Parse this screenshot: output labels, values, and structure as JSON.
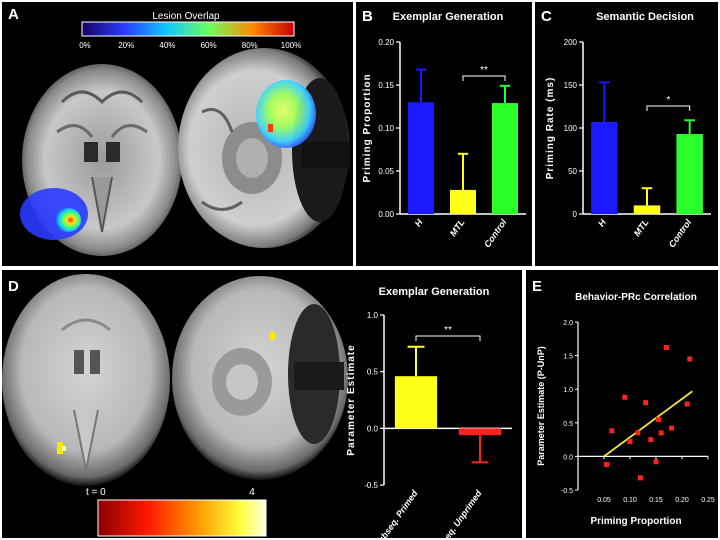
{
  "panels": {
    "a": {
      "label": "A",
      "colorbar_title": "Lesion Overlap",
      "colorbar_ticks": [
        "0%",
        "20%",
        "40%",
        "60%",
        "80%",
        "100%"
      ]
    },
    "b": {
      "label": "B"
    },
    "c": {
      "label": "C"
    },
    "d": {
      "label": "D",
      "colorbar_min": "t = 0",
      "colorbar_max": "4"
    },
    "e": {
      "label": "E"
    }
  },
  "chart_data": [
    {
      "id": "exemplar-generation",
      "type": "bar",
      "title": "Exemplar Generation",
      "ylabel": "Priming Proportion",
      "categories": [
        "H",
        "MTL",
        "Control"
      ],
      "values": [
        0.13,
        0.028,
        0.129
      ],
      "errors": [
        0.038,
        0.042,
        0.02
      ],
      "colors": [
        "#1a1aff",
        "#ffff1a",
        "#2bff2b"
      ],
      "ylim": [
        0,
        0.2
      ],
      "yticks": [
        "0.00",
        "0.05",
        "0.10",
        "0.15",
        "0.20"
      ],
      "significance": [
        {
          "from": 1,
          "to": 2,
          "label": "**"
        }
      ]
    },
    {
      "id": "semantic-decision",
      "type": "bar",
      "title": "Semantic Decision",
      "ylabel": "Priming Rate (ms)",
      "categories": [
        "H",
        "MTL",
        "Control"
      ],
      "values": [
        107,
        10,
        93
      ],
      "errors": [
        46,
        20,
        16
      ],
      "colors": [
        "#1a1aff",
        "#ffff1a",
        "#2bff2b"
      ],
      "ylim": [
        0,
        200
      ],
      "yticks": [
        "0",
        "50",
        "100",
        "150",
        "200"
      ],
      "significance": [
        {
          "from": 1,
          "to": 2,
          "label": "*"
        }
      ]
    },
    {
      "id": "exemplar-generation-fmri",
      "type": "bar",
      "title": "Exemplar Generation",
      "ylabel": "Parameter Estimate",
      "categories": [
        "Subseq. Primed",
        "Subseq. Unprimed"
      ],
      "values": [
        0.46,
        -0.06
      ],
      "errors": [
        0.26,
        0.24
      ],
      "colors": [
        "#ffff1a",
        "#ff2020"
      ],
      "ylim": [
        -0.5,
        1.0
      ],
      "yticks": [
        "-0.5",
        "0.0",
        "0.5",
        "1.0"
      ],
      "significance": [
        {
          "from": 0,
          "to": 1,
          "label": "**"
        }
      ]
    },
    {
      "id": "behavior-prc-correlation",
      "type": "scatter",
      "title": "Behavior-PRc Correlation",
      "xlabel": "Priming Proportion",
      "ylabel": "Parameter Estimate (P-UnP)",
      "xlim": [
        0,
        0.25
      ],
      "ylim": [
        -0.5,
        2.0
      ],
      "xticks": [
        "0.05",
        "0.10",
        "0.15",
        "0.20",
        "0.25"
      ],
      "yticks": [
        "-0.5",
        "0.0",
        "0.5",
        "1.0",
        "1.5",
        "2.0"
      ],
      "points": [
        [
          0.055,
          -0.12
        ],
        [
          0.065,
          0.38
        ],
        [
          0.09,
          0.88
        ],
        [
          0.1,
          0.22
        ],
        [
          0.115,
          0.35
        ],
        [
          0.12,
          -0.32
        ],
        [
          0.13,
          0.8
        ],
        [
          0.14,
          0.25
        ],
        [
          0.15,
          -0.08
        ],
        [
          0.155,
          0.55
        ],
        [
          0.16,
          0.35
        ],
        [
          0.17,
          1.62
        ],
        [
          0.18,
          0.42
        ],
        [
          0.21,
          0.78
        ],
        [
          0.215,
          1.45
        ]
      ],
      "fit": [
        [
          0.05,
          0.0
        ],
        [
          0.22,
          0.97
        ]
      ],
      "point_color": "#ff2020",
      "fit_color": "#f2e04a"
    }
  ]
}
